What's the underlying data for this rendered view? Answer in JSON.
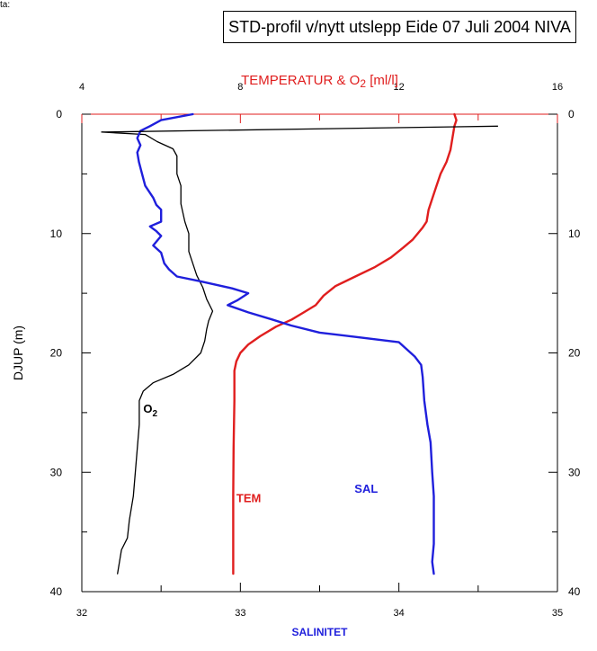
{
  "title": "STD-profil v/nytt utslepp Eide 07 Juli 2004  NIVA",
  "corner_text": "ta:",
  "colors": {
    "temperature": "#e01e1e",
    "salinity": "#1f1fdc",
    "oxygen": "#000000",
    "axis_top": "#e01e1e",
    "axis": "#000000",
    "sal_label": "#1f1fdc"
  },
  "chart_data": {
    "type": "line",
    "title": "STD-profil v/nytt utslepp Eide 07 Juli 2004  NIVA",
    "y_axis": {
      "label": "DJUP (m)",
      "range": [
        0,
        40
      ],
      "inverted": true,
      "ticks": [
        0,
        10,
        20,
        30,
        40
      ]
    },
    "x_top": {
      "label_pre": "TEMPERATUR & O",
      "label_sub": "2",
      "label_post": " [ml/l]",
      "range": [
        4,
        16
      ],
      "ticks": [
        4,
        8,
        12,
        16
      ]
    },
    "x_bottom": {
      "label": "SALINITET",
      "range": [
        32,
        35
      ],
      "ticks": [
        32,
        33,
        34,
        35
      ]
    },
    "series": [
      {
        "name": "TEM",
        "axis": "top",
        "points": [
          [
            13.4,
            0
          ],
          [
            13.45,
            0.5
          ],
          [
            13.4,
            1
          ],
          [
            13.35,
            2
          ],
          [
            13.3,
            3
          ],
          [
            13.2,
            4
          ],
          [
            13.05,
            5
          ],
          [
            12.95,
            6
          ],
          [
            12.85,
            7
          ],
          [
            12.75,
            8
          ],
          [
            12.7,
            9
          ],
          [
            12.6,
            9.5
          ],
          [
            12.35,
            10.5
          ],
          [
            12.1,
            11.2
          ],
          [
            11.8,
            12
          ],
          [
            11.4,
            12.8
          ],
          [
            10.9,
            13.6
          ],
          [
            10.4,
            14.4
          ],
          [
            10.1,
            15.2
          ],
          [
            9.9,
            16
          ],
          [
            9.6,
            16.6
          ],
          [
            9.3,
            17.2
          ],
          [
            8.9,
            17.8
          ],
          [
            8.5,
            18.6
          ],
          [
            8.2,
            19.3
          ],
          [
            8,
            20
          ],
          [
            7.9,
            20.7
          ],
          [
            7.85,
            21.5
          ],
          [
            7.85,
            24
          ],
          [
            7.83,
            28
          ],
          [
            7.82,
            32
          ],
          [
            7.82,
            36
          ],
          [
            7.82,
            38.5
          ]
        ]
      },
      {
        "name": "O2",
        "axis": "top",
        "points": [
          [
            4.5,
            1.5
          ],
          [
            5.6,
            1.7
          ],
          [
            5.9,
            2.3
          ],
          [
            6.3,
            2.9
          ],
          [
            6.4,
            3.5
          ],
          [
            6.4,
            5
          ],
          [
            6.5,
            6
          ],
          [
            6.5,
            7.5
          ],
          [
            6.6,
            9
          ],
          [
            6.7,
            10
          ],
          [
            6.7,
            11.5
          ],
          [
            6.8,
            12.5
          ],
          [
            6.9,
            13.5
          ],
          [
            7.05,
            14.5
          ],
          [
            7.15,
            15.5
          ],
          [
            7.3,
            16.5
          ],
          [
            7.2,
            17.3
          ],
          [
            7.15,
            18
          ],
          [
            7.1,
            19
          ],
          [
            7.0,
            20
          ],
          [
            6.7,
            21
          ],
          [
            6.3,
            21.8
          ],
          [
            5.8,
            22.5
          ],
          [
            5.55,
            23.2
          ],
          [
            5.45,
            24
          ],
          [
            5.45,
            26
          ],
          [
            5.4,
            28
          ],
          [
            5.35,
            30
          ],
          [
            5.3,
            32
          ],
          [
            5.2,
            34
          ],
          [
            5.15,
            35.5
          ],
          [
            5.0,
            36.5
          ],
          [
            4.95,
            37.5
          ],
          [
            4.9,
            38.5
          ]
        ]
      },
      {
        "name": "SAL",
        "axis": "bottom",
        "points": [
          [
            32.7,
            0
          ],
          [
            32.5,
            0.5
          ],
          [
            32.43,
            1
          ],
          [
            32.37,
            1.4
          ],
          [
            32.35,
            2
          ],
          [
            32.37,
            2.6
          ],
          [
            32.35,
            3.2
          ],
          [
            32.36,
            4
          ],
          [
            32.38,
            5
          ],
          [
            32.4,
            6
          ],
          [
            32.45,
            7
          ],
          [
            32.47,
            7.6
          ],
          [
            32.5,
            8
          ],
          [
            32.5,
            9
          ],
          [
            32.43,
            9.4
          ],
          [
            32.47,
            9.8
          ],
          [
            32.5,
            10.2
          ],
          [
            32.45,
            11
          ],
          [
            32.5,
            11.6
          ],
          [
            32.52,
            12.5
          ],
          [
            32.55,
            13
          ],
          [
            32.6,
            13.6
          ],
          [
            32.75,
            14
          ],
          [
            32.95,
            14.6
          ],
          [
            33.05,
            15
          ],
          [
            32.98,
            15.6
          ],
          [
            32.92,
            16
          ],
          [
            33.05,
            16.6
          ],
          [
            33.2,
            17.2
          ],
          [
            33.32,
            17.7
          ],
          [
            33.5,
            18.3
          ],
          [
            33.75,
            18.7
          ],
          [
            34.0,
            19.1
          ],
          [
            34.1,
            20.3
          ],
          [
            34.14,
            21
          ],
          [
            34.15,
            22
          ],
          [
            34.16,
            24
          ],
          [
            34.18,
            26
          ],
          [
            34.2,
            27.5
          ],
          [
            34.21,
            30
          ],
          [
            34.22,
            32
          ],
          [
            34.22,
            34
          ],
          [
            34.22,
            36
          ],
          [
            34.21,
            37.5
          ],
          [
            34.22,
            38.5
          ]
        ]
      }
    ],
    "spike": {
      "name": "",
      "axis": "top",
      "points": [
        [
          4.5,
          1.5
        ],
        [
          14.5,
          1.0
        ]
      ]
    },
    "annotations": [
      {
        "text_main": "O",
        "text_sub": "2",
        "x": 5.55,
        "y": 25.0,
        "axis": "top"
      },
      {
        "text_main": "TEM",
        "x": 7.9,
        "y": 32.5,
        "axis": "top"
      },
      {
        "text_main": "SAL",
        "x": 33.72,
        "y": 31.7,
        "axis": "bottom"
      }
    ]
  }
}
